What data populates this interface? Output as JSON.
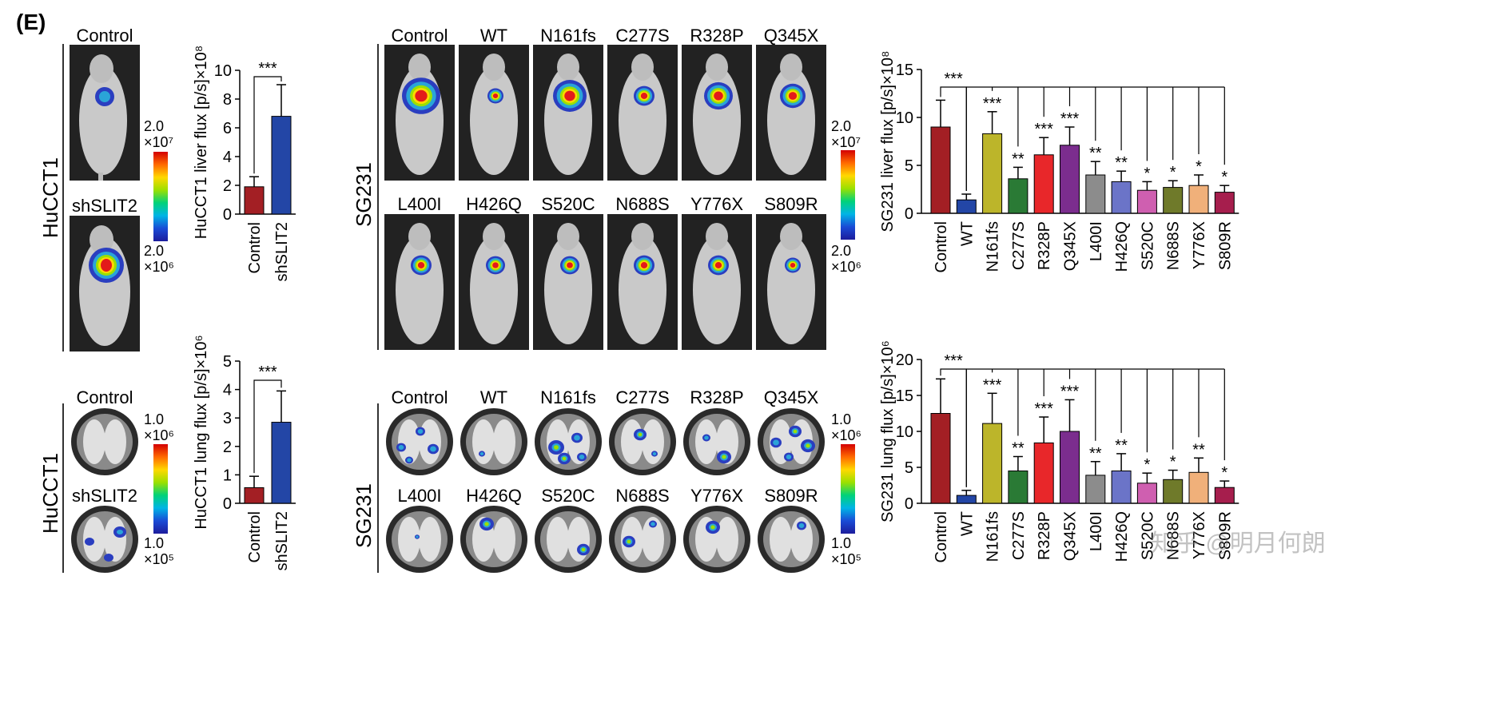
{
  "panel_label": "(E)",
  "left": {
    "cell_line": "HuCCT1",
    "liver_conditions": [
      "Control",
      "shSLIT2"
    ],
    "lung_conditions": [
      "Control",
      "shSLIT2"
    ],
    "liver_scale": {
      "max": "2.0",
      "max_exp": "×10⁷",
      "min": "2.0",
      "min_exp": "×10⁶"
    },
    "lung_scale": {
      "max": "1.0",
      "max_exp": "×10⁶",
      "min": "1.0",
      "min_exp": "×10⁵"
    }
  },
  "middle": {
    "cell_line": "SG231",
    "row1": [
      "Control",
      "WT",
      "N161fs",
      "C277S",
      "R328P",
      "Q345X"
    ],
    "row2": [
      "L400I",
      "H426Q",
      "S520C",
      "N688S",
      "Y776X",
      "S809R"
    ],
    "liver_scale": {
      "max": "2.0",
      "max_exp": "×10⁷",
      "min": "2.0",
      "min_exp": "×10⁶"
    },
    "lung_scale": {
      "max": "1.0",
      "max_exp": "×10⁶",
      "min": "1.0",
      "min_exp": "×10⁵"
    }
  },
  "watermark": "知乎 @明月何朗",
  "chart_data": [
    {
      "id": "hucct1-liver",
      "type": "bar",
      "ylabel": "HuCCT1 liver flux [p/s]×10⁸",
      "ylim": [
        0,
        10
      ],
      "yticks": [
        0,
        2,
        4,
        6,
        8,
        10
      ],
      "categories": [
        "Control",
        "shSLIT2"
      ],
      "values": [
        1.9,
        6.8
      ],
      "errors": [
        0.7,
        2.2
      ],
      "colors": [
        "#a31f24",
        "#2346a6"
      ],
      "significance": [
        {
          "from": 0,
          "to": 1,
          "label": "***"
        }
      ]
    },
    {
      "id": "hucct1-lung",
      "type": "bar",
      "ylabel": "HuCCT1 lung flux [p/s]×10⁶",
      "ylim": [
        0,
        5
      ],
      "yticks": [
        0,
        1,
        2,
        3,
        4,
        5
      ],
      "categories": [
        "Control",
        "shSLIT2"
      ],
      "values": [
        0.55,
        2.85
      ],
      "errors": [
        0.4,
        1.1
      ],
      "colors": [
        "#a31f24",
        "#2346a6"
      ],
      "significance": [
        {
          "from": 0,
          "to": 1,
          "label": "***"
        }
      ]
    },
    {
      "id": "sg231-liver",
      "type": "bar",
      "ylabel": "SG231 liver flux [p/s]×10⁸",
      "ylim": [
        0,
        15
      ],
      "yticks": [
        0,
        5,
        10,
        15
      ],
      "categories": [
        "Control",
        "WT",
        "N161fs",
        "C277S",
        "R328P",
        "Q345X",
        "L400I",
        "H426Q",
        "S520C",
        "N688S",
        "Y776X",
        "S809R"
      ],
      "values": [
        9.0,
        1.4,
        8.3,
        3.6,
        6.1,
        7.1,
        4.0,
        3.3,
        2.4,
        2.7,
        2.9,
        2.2
      ],
      "errors": [
        2.8,
        0.6,
        2.3,
        1.2,
        1.8,
        1.9,
        1.4,
        1.1,
        0.9,
        0.7,
        1.1,
        0.7
      ],
      "colors": [
        "#a31f24",
        "#2346a6",
        "#bcb52a",
        "#2a7a35",
        "#e8272a",
        "#7b2d8e",
        "#8c8c8c",
        "#6b74c8",
        "#cf5fb0",
        "#6f7a2a",
        "#f0b07a",
        "#a61e4d"
      ],
      "significance": [
        {
          "from": 0,
          "to": 1,
          "label": "***"
        }
      ],
      "bar_stars": [
        "",
        "",
        "***",
        "**",
        "***",
        "***",
        "**",
        "**",
        "*",
        "*",
        "*",
        "*"
      ]
    },
    {
      "id": "sg231-lung",
      "type": "bar",
      "ylabel": "SG231 lung flux [p/s]×10⁶",
      "ylim": [
        0,
        20
      ],
      "yticks": [
        0,
        5,
        10,
        15,
        20
      ],
      "categories": [
        "Control",
        "WT",
        "N161fs",
        "C277S",
        "R328P",
        "Q345X",
        "L400I",
        "H426Q",
        "S520C",
        "N688S",
        "Y776X",
        "S809R"
      ],
      "values": [
        12.5,
        1.1,
        11.1,
        4.5,
        8.4,
        10.0,
        3.9,
        4.5,
        2.8,
        3.3,
        4.3,
        2.2
      ],
      "errors": [
        4.8,
        0.7,
        4.2,
        2.0,
        3.6,
        4.4,
        1.9,
        2.4,
        1.4,
        1.3,
        2.0,
        0.9
      ],
      "colors": [
        "#a31f24",
        "#2346a6",
        "#bcb52a",
        "#2a7a35",
        "#e8272a",
        "#7b2d8e",
        "#8c8c8c",
        "#6b74c8",
        "#cf5fb0",
        "#6f7a2a",
        "#f0b07a",
        "#a61e4d"
      ],
      "significance": [
        {
          "from": 0,
          "to": 1,
          "label": "***"
        }
      ],
      "bar_stars": [
        "",
        "",
        "***",
        "**",
        "***",
        "***",
        "**",
        "**",
        "*",
        "*",
        "**",
        "*"
      ]
    }
  ]
}
